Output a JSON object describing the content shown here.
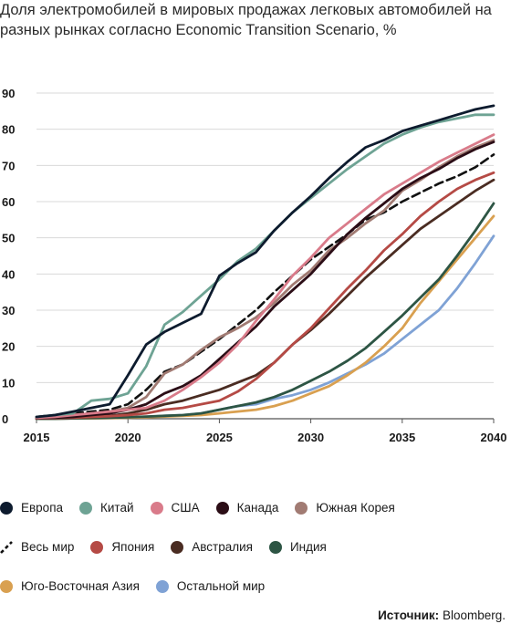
{
  "title": "Доля электромобилей в мировых продажах легковых автомобилей на разных рынках согласно Economic Transition Scenario, %",
  "source_label": "Источник:",
  "source_value": "Bloomberg.",
  "chart_data": {
    "type": "line",
    "title": "Доля электромобилей в мировых продажах легковых автомобилей на разных рынках согласно Economic Transition Scenario, %",
    "xlim": [
      2015,
      2040
    ],
    "ylim": [
      0,
      90
    ],
    "x_ticks": [
      2015,
      2020,
      2025,
      2030,
      2035,
      2040
    ],
    "y_ticks": [
      0,
      10,
      20,
      30,
      40,
      50,
      60,
      70,
      80,
      90
    ],
    "grid": "horizontal",
    "legend_position": "bottom",
    "x": [
      2015,
      2016,
      2017,
      2018,
      2019,
      2020,
      2021,
      2022,
      2023,
      2024,
      2025,
      2026,
      2027,
      2028,
      2029,
      2030,
      2031,
      2032,
      2033,
      2034,
      2035,
      2036,
      2037,
      2038,
      2039,
      2040
    ],
    "series": [
      {
        "name": "Европа",
        "color": "#0d1b2e",
        "dashed": false,
        "values": [
          0.5,
          1,
          2,
          3,
          4,
          12,
          20.5,
          24,
          26.5,
          29,
          39.5,
          43,
          46,
          52,
          57,
          61.5,
          66.5,
          71,
          75,
          77,
          79.5,
          81,
          82.5,
          84,
          85.5,
          86.5
        ]
      },
      {
        "name": "Китай",
        "color": "#6ea394",
        "dashed": false,
        "values": [
          0.5,
          1,
          1.5,
          5,
          5.5,
          7,
          14.5,
          26,
          29.5,
          34,
          38.5,
          43.5,
          47,
          52,
          57,
          61,
          65,
          69,
          72.5,
          76,
          78.5,
          80.5,
          82,
          83,
          84,
          84
        ]
      },
      {
        "name": "США",
        "color": "#d97b8a",
        "dashed": false,
        "values": [
          0.3,
          0.5,
          1,
          1.5,
          2,
          2.5,
          3,
          5,
          8,
          11.5,
          15.5,
          20.5,
          27,
          33,
          39.5,
          44.5,
          50,
          54,
          58,
          62,
          65,
          68,
          71,
          73.5,
          76,
          78.5
        ]
      },
      {
        "name": "Канада",
        "color": "#2b0d16",
        "dashed": false,
        "values": [
          0.2,
          0.3,
          0.5,
          1,
          1.5,
          2.5,
          4,
          7,
          9,
          12,
          16.5,
          21,
          25.5,
          31,
          35.5,
          40,
          45.5,
          51,
          55.5,
          59.5,
          63.5,
          66.5,
          69,
          72,
          74.5,
          76.5
        ]
      },
      {
        "name": "Южная Корея",
        "color": "#a17b73",
        "dashed": false,
        "values": [
          0.3,
          0.5,
          1,
          1.5,
          2,
          3,
          6,
          12.5,
          15,
          19,
          22.5,
          25,
          28,
          32,
          37,
          41,
          46.5,
          50,
          54,
          57.5,
          63,
          66,
          69.5,
          72.5,
          75,
          77
        ]
      },
      {
        "name": "Весь мир",
        "color": "#111111",
        "dashed": true,
        "values": [
          0.5,
          1,
          1.5,
          2,
          2.5,
          4,
          8,
          13,
          15,
          18.5,
          22,
          26,
          30,
          35,
          39.5,
          44,
          47.5,
          51,
          55,
          57,
          60,
          62.5,
          65,
          67,
          69.5,
          73
        ]
      },
      {
        "name": "Япония",
        "color": "#b54a45",
        "dashed": false,
        "values": [
          0.1,
          0.2,
          0.3,
          0.5,
          0.7,
          1,
          1.5,
          2.5,
          3,
          4,
          5,
          7.5,
          11,
          15.5,
          20.5,
          25,
          30.5,
          36,
          41,
          46.5,
          51,
          56,
          60,
          63.5,
          66,
          68
        ]
      },
      {
        "name": "Австралия",
        "color": "#4a2c22",
        "dashed": false,
        "values": [
          0.1,
          0.2,
          0.3,
          0.5,
          0.8,
          1.5,
          2.5,
          4,
          5,
          6.5,
          8,
          10,
          12,
          15.5,
          20.5,
          24.5,
          29,
          34,
          39,
          43.5,
          48,
          52.5,
          56,
          59.5,
          63,
          66
        ]
      },
      {
        "name": "Индия",
        "color": "#2d5544",
        "dashed": false,
        "values": [
          0,
          0,
          0.1,
          0.2,
          0.3,
          0.4,
          0.6,
          0.8,
          1,
          1.5,
          2.5,
          3.5,
          4.5,
          6,
          8,
          10.5,
          13,
          16,
          19.5,
          24,
          28.5,
          33.5,
          38.5,
          45,
          52,
          59.5
        ]
      },
      {
        "name": "Юго-Восточная Азия",
        "color": "#d9a050",
        "dashed": false,
        "values": [
          0,
          0,
          0.1,
          0.1,
          0.2,
          0.3,
          0.4,
          0.6,
          0.8,
          1,
          1.5,
          2,
          2.5,
          3.5,
          5,
          7,
          9,
          12,
          15.5,
          20,
          25,
          32,
          38,
          44,
          50,
          56
        ]
      },
      {
        "name": "Остальной мир",
        "color": "#7fa2d5",
        "dashed": false,
        "values": [
          0,
          0,
          0.1,
          0.1,
          0.2,
          0.3,
          0.5,
          0.8,
          1,
          1.5,
          2.5,
          3.5,
          4,
          5.5,
          6.5,
          8,
          10,
          12.5,
          15,
          18,
          22,
          26,
          30,
          36,
          43,
          50.5
        ]
      }
    ]
  },
  "legend_rows": [
    [
      0,
      1,
      2,
      3,
      4
    ],
    [
      5,
      6,
      7,
      8
    ],
    [
      9,
      10
    ]
  ]
}
